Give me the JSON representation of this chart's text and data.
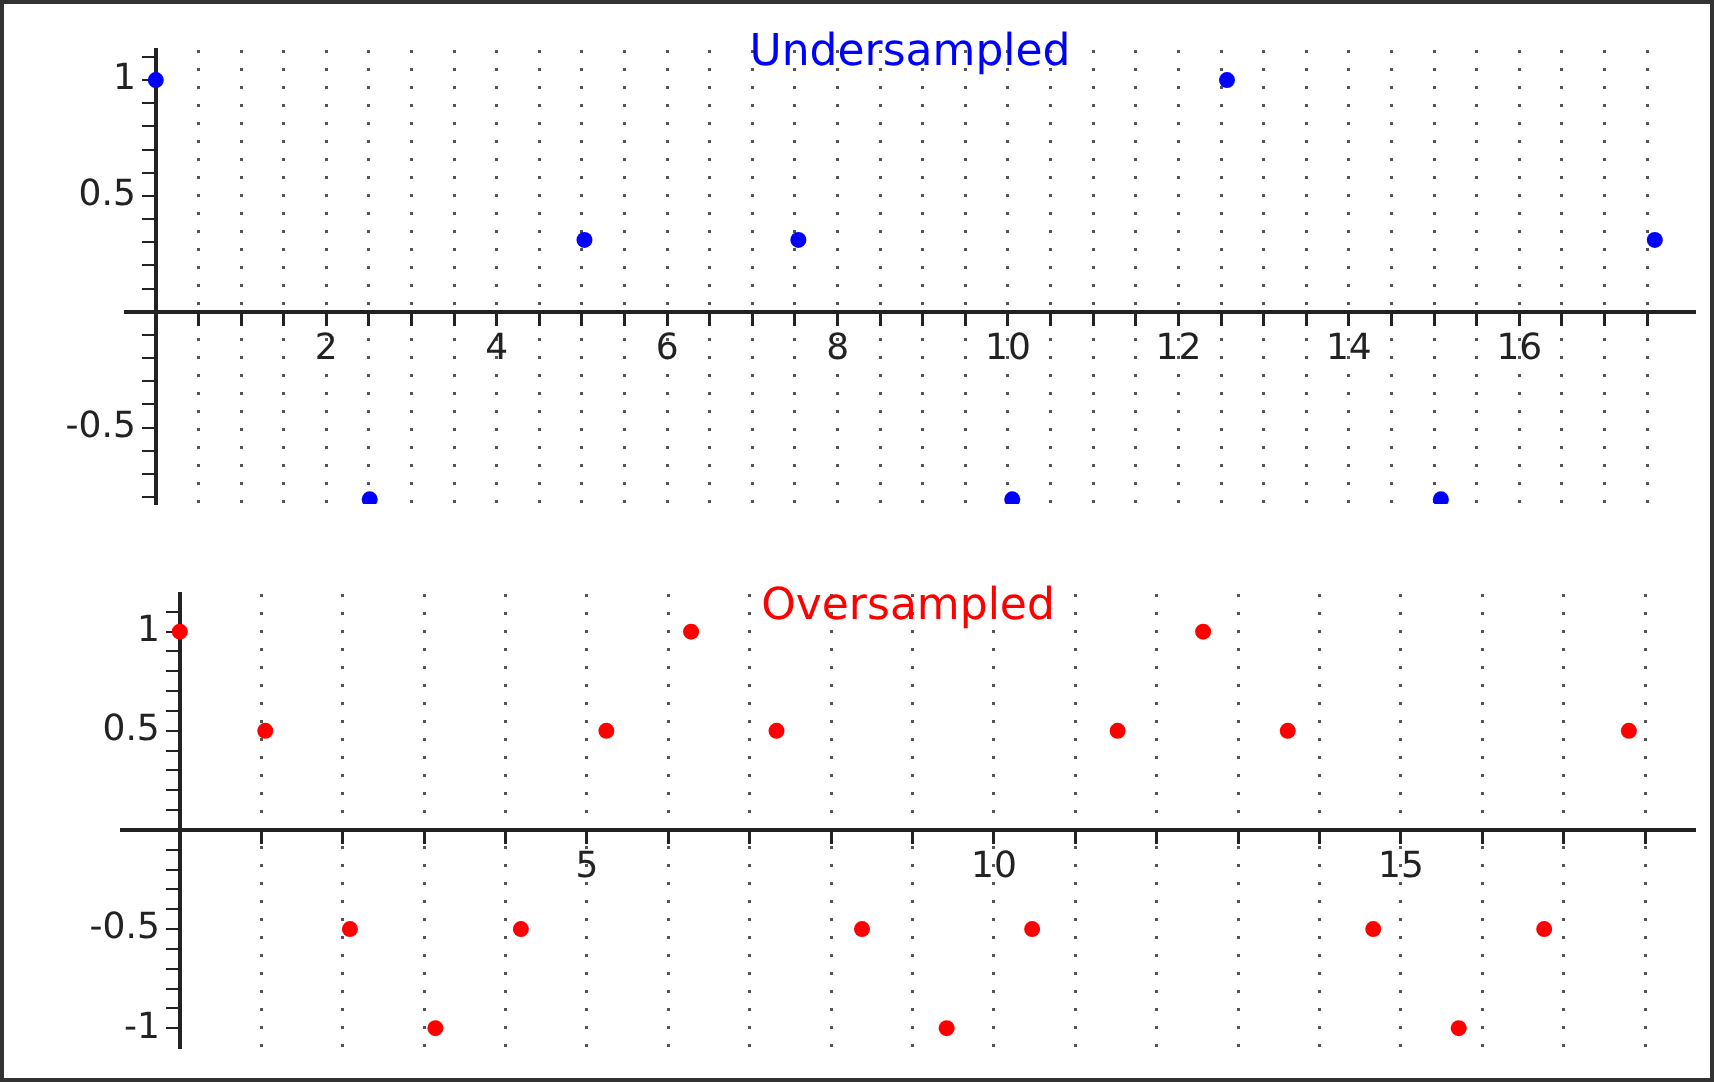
{
  "chart_data": [
    {
      "type": "scatter",
      "title": "Undersampled",
      "marker": "circle",
      "grid": "x",
      "legend": false,
      "xlim": [
        -0.35,
        18.05
      ],
      "ylim": [
        -0.83,
        1.13
      ],
      "xticks": [
        {
          "value": 0.5,
          "label": null
        },
        {
          "value": 1,
          "label": null
        },
        {
          "value": 1.5,
          "label": null
        },
        2,
        {
          "value": 2.5,
          "label": null
        },
        {
          "value": 3,
          "label": null
        },
        {
          "value": 3.5,
          "label": null
        },
        4,
        {
          "value": 4.5,
          "label": null
        },
        {
          "value": 5,
          "label": null
        },
        {
          "value": 5.5,
          "label": null
        },
        6,
        {
          "value": 6.5,
          "label": null
        },
        {
          "value": 7,
          "label": null
        },
        {
          "value": 7.5,
          "label": null
        },
        8,
        {
          "value": 8.5,
          "label": null
        },
        {
          "value": 9,
          "label": null
        },
        {
          "value": 9.5,
          "label": null
        },
        10,
        {
          "value": 10.5,
          "label": null
        },
        {
          "value": 11,
          "label": null
        },
        {
          "value": 11.5,
          "label": null
        },
        12,
        {
          "value": 12.5,
          "label": null
        },
        {
          "value": 13,
          "label": null
        },
        {
          "value": 13.5,
          "label": null
        },
        14,
        {
          "value": 14.5,
          "label": null
        },
        {
          "value": 15,
          "label": null
        },
        {
          "value": 15.5,
          "label": null
        },
        16,
        {
          "value": 16.5,
          "label": null
        },
        {
          "value": 17,
          "label": null
        },
        {
          "value": 17.5,
          "label": null
        }
      ],
      "yticks": [
        {
          "value": -0.8,
          "label": null
        },
        {
          "value": -0.7,
          "label": null
        },
        {
          "value": -0.6,
          "label": null
        },
        -0.5,
        {
          "value": -0.4,
          "label": null
        },
        {
          "value": -0.3,
          "label": null
        },
        {
          "value": -0.2,
          "label": null
        },
        {
          "value": -0.1,
          "label": null
        },
        {
          "value": 0.1,
          "label": null
        },
        {
          "value": 0.2,
          "label": null
        },
        {
          "value": 0.3,
          "label": null
        },
        {
          "value": 0.4,
          "label": null
        },
        0.5,
        {
          "value": 0.6,
          "label": null
        },
        {
          "value": 0.7,
          "label": null
        },
        {
          "value": 0.8,
          "label": null
        },
        {
          "value": 0.9,
          "label": null
        },
        1,
        {
          "value": 1.1,
          "label": null
        }
      ],
      "series": [
        {
          "color": "#0000ff",
          "x": [
            0,
            2.51,
            5.03,
            7.54,
            10.05,
            12.57,
            15.08,
            17.59
          ],
          "values": [
            1,
            -0.81,
            0.31,
            0.31,
            -0.81,
            1,
            -0.81,
            0.31
          ]
        }
      ]
    },
    {
      "type": "scatter",
      "title": "Oversampled",
      "marker": "circle",
      "grid": "x",
      "legend": false,
      "xlim": [
        -0.71,
        18.6
      ],
      "ylim": [
        -1.1,
        1.19
      ],
      "xticks": [
        {
          "value": 1,
          "label": null
        },
        {
          "value": 2,
          "label": null
        },
        {
          "value": 3,
          "label": null
        },
        {
          "value": 4,
          "label": null
        },
        5,
        {
          "value": 6,
          "label": null
        },
        {
          "value": 7,
          "label": null
        },
        {
          "value": 8,
          "label": null
        },
        {
          "value": 9,
          "label": null
        },
        10,
        {
          "value": 11,
          "label": null
        },
        {
          "value": 12,
          "label": null
        },
        {
          "value": 13,
          "label": null
        },
        {
          "value": 14,
          "label": null
        },
        15,
        {
          "value": 16,
          "label": null
        },
        {
          "value": 17,
          "label": null
        },
        {
          "value": 18,
          "label": null
        }
      ],
      "yticks": [
        -1,
        {
          "value": -0.9,
          "label": null
        },
        {
          "value": -0.8,
          "label": null
        },
        {
          "value": -0.7,
          "label": null
        },
        {
          "value": -0.6,
          "label": null
        },
        -0.5,
        {
          "value": -0.4,
          "label": null
        },
        {
          "value": -0.3,
          "label": null
        },
        {
          "value": -0.2,
          "label": null
        },
        {
          "value": -0.1,
          "label": null
        },
        {
          "value": 0.1,
          "label": null
        },
        {
          "value": 0.2,
          "label": null
        },
        {
          "value": 0.3,
          "label": null
        },
        {
          "value": 0.4,
          "label": null
        },
        0.5,
        {
          "value": 0.6,
          "label": null
        },
        {
          "value": 0.7,
          "label": null
        },
        {
          "value": 0.8,
          "label": null
        },
        {
          "value": 0.9,
          "label": null
        },
        1,
        {
          "value": 1.1,
          "label": null
        }
      ],
      "series": [
        {
          "color": "#ff0000",
          "x": [
            0,
            1.05,
            2.09,
            3.14,
            4.19,
            5.24,
            6.28,
            7.33,
            8.38,
            9.42,
            10.47,
            11.52,
            12.57,
            13.61,
            14.66,
            15.71,
            16.76,
            17.8
          ],
          "values": [
            1,
            0.5,
            -0.5,
            -1,
            -0.5,
            0.5,
            1,
            0.5,
            -0.5,
            -1,
            -0.5,
            0.5,
            1,
            0.5,
            -0.5,
            -1,
            -0.5,
            0.5
          ]
        }
      ]
    }
  ]
}
